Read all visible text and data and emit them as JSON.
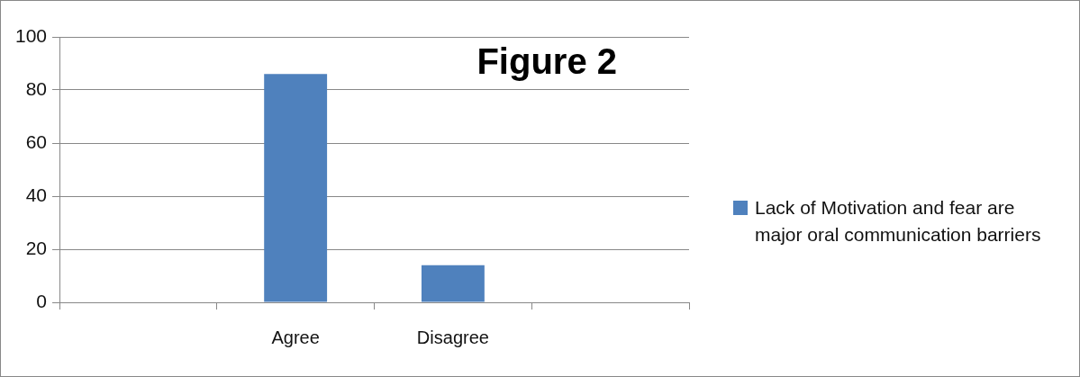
{
  "chart_data": {
    "type": "bar",
    "title": "Figure 2",
    "categories": [
      null,
      "Agree",
      "Disagree",
      null
    ],
    "series": [
      {
        "name": "Lack of Motivation  and fear are major oral communication barriers",
        "color": "#4f81bd",
        "values": [
          null,
          86,
          14,
          null
        ]
      }
    ],
    "ylim": [
      0,
      100
    ],
    "yticks": [
      0,
      20,
      40,
      60,
      80,
      100
    ],
    "grid": "y",
    "legend": "right"
  }
}
